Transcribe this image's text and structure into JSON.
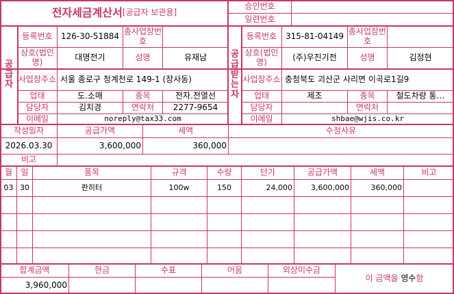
{
  "title": "전자세금계산서",
  "title_sub": "[공급자 보관용]",
  "approval_label": "승인번호",
  "approval_value": "",
  "serial_label": "일련번호",
  "serial_value": "",
  "supplier": {
    "side_label": "공급자",
    "reg_label": "등록번호",
    "reg": "126-30-51884",
    "sub_label": "종사업장번호",
    "sub": "",
    "name_label": "상호(법인명)",
    "name": "대명전기",
    "ceo_label": "성명",
    "ceo": "유재남",
    "addr_label": "사업장주소",
    "addr": "서울 종로구 청계천로 149-1 (장사동)",
    "type_label": "업태",
    "type": "도.소매",
    "item_label": "종목",
    "item": "전자.전열선",
    "contact_label": "담당자",
    "contact": "김치경",
    "phone_label": "연락처",
    "phone": "2277-9654",
    "email_label": "이메일",
    "email": "noreply@tax33.com"
  },
  "receiver": {
    "side_label": "공급받는자",
    "reg_label": "등록번호",
    "reg": "315-81-04149",
    "sub_label": "종사업장번호",
    "sub": "",
    "name_label": "상호(법인명)",
    "name": "(주)우진기전",
    "ceo_label": "성명",
    "ceo": "김정현",
    "addr_label": "사업장주소",
    "addr": "충청북도 괴산군 사리면 이곡로1길9",
    "type_label": "업태",
    "type": "제조",
    "item_label": "종목",
    "item": "철도차량 통…",
    "contact_label": "담당자",
    "contact": "",
    "phone_label": "연락처",
    "phone": "",
    "email_label": "이메일",
    "email": "shbae@wjis.co.kr"
  },
  "summary": {
    "date_label": "작성일자",
    "date": "2026.03.30",
    "supply_label": "공급가액",
    "supply": "3,600,000",
    "tax_label": "세액",
    "tax": "360,000",
    "reason_label": "수정사유",
    "reason": "",
    "note_label": "비고",
    "note": ""
  },
  "items": {
    "headers": [
      "월",
      "일",
      "품목",
      "규격",
      "수량",
      "단가",
      "공급가액",
      "세액",
      "비고"
    ],
    "rows": [
      [
        "03",
        "30",
        "판히터",
        "100w",
        "150",
        "24,000",
        "3,600,000",
        "360,000",
        ""
      ]
    ]
  },
  "totals": {
    "headers": [
      "합계금액",
      "현금",
      "수표",
      "어음",
      "외상미수금"
    ],
    "values": [
      "3,960,000",
      "",
      "",
      "",
      ""
    ],
    "receipt_prefix": "이 금액을",
    "receipt_mode": "영수",
    "receipt_suffix": "함"
  },
  "colors": {
    "line": "#c83466",
    "label": "#c83466"
  }
}
